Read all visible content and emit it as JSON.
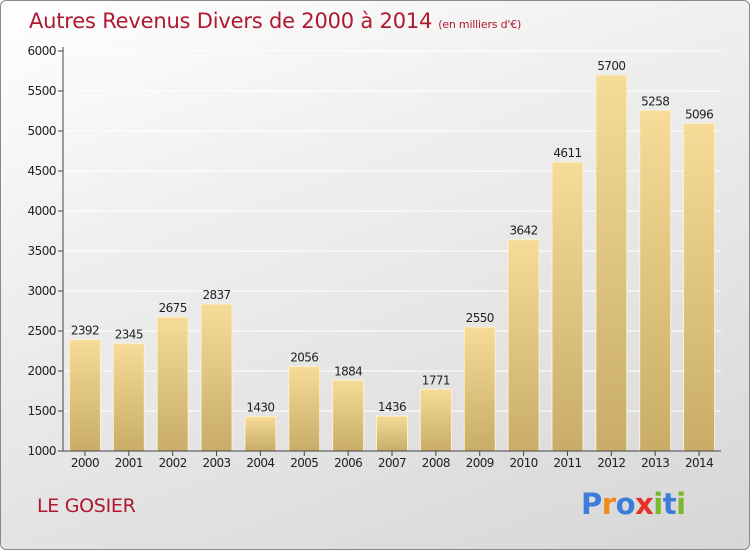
{
  "title": "Autres Revenus Divers de 2000 à 2014",
  "unit": "(en milliers d'€)",
  "location": "LE GOSIER",
  "brand": {
    "text": "Proxiti",
    "letters": [
      {
        "ch": "P",
        "color": "#3b7dd8"
      },
      {
        "ch": "r",
        "color": "#f08a1c"
      },
      {
        "ch": "o",
        "color": "#3b7dd8"
      },
      {
        "ch": "x",
        "color": "#e8302a"
      },
      {
        "ch": "i",
        "color": "#7ab829"
      },
      {
        "ch": "t",
        "color": "#3b7dd8"
      },
      {
        "ch": "i",
        "color": "#7ab829"
      }
    ]
  },
  "chart_data": {
    "type": "bar",
    "title": "Autres Revenus Divers de 2000 à 2014",
    "subtitle": "(en milliers d'€)",
    "categories": [
      "2000",
      "2001",
      "2002",
      "2003",
      "2004",
      "2005",
      "2006",
      "2007",
      "2008",
      "2009",
      "2010",
      "2011",
      "2012",
      "2013",
      "2014"
    ],
    "values": [
      2392,
      2345,
      2675,
      2837,
      1430,
      2056,
      1884,
      1436,
      1771,
      2550,
      3642,
      4611,
      5700,
      5258,
      5096
    ],
    "ylim": [
      1000,
      6000
    ],
    "yticks": [
      1000,
      1500,
      2000,
      2500,
      3000,
      3500,
      4000,
      4500,
      5000,
      5500,
      6000
    ],
    "xlabel": "",
    "ylabel": "",
    "grid": true,
    "colors": {
      "bar_light": "#f6dc98",
      "bar_dark": "#c8ac68",
      "axis": "#444444",
      "grid": "#ffffff"
    }
  }
}
